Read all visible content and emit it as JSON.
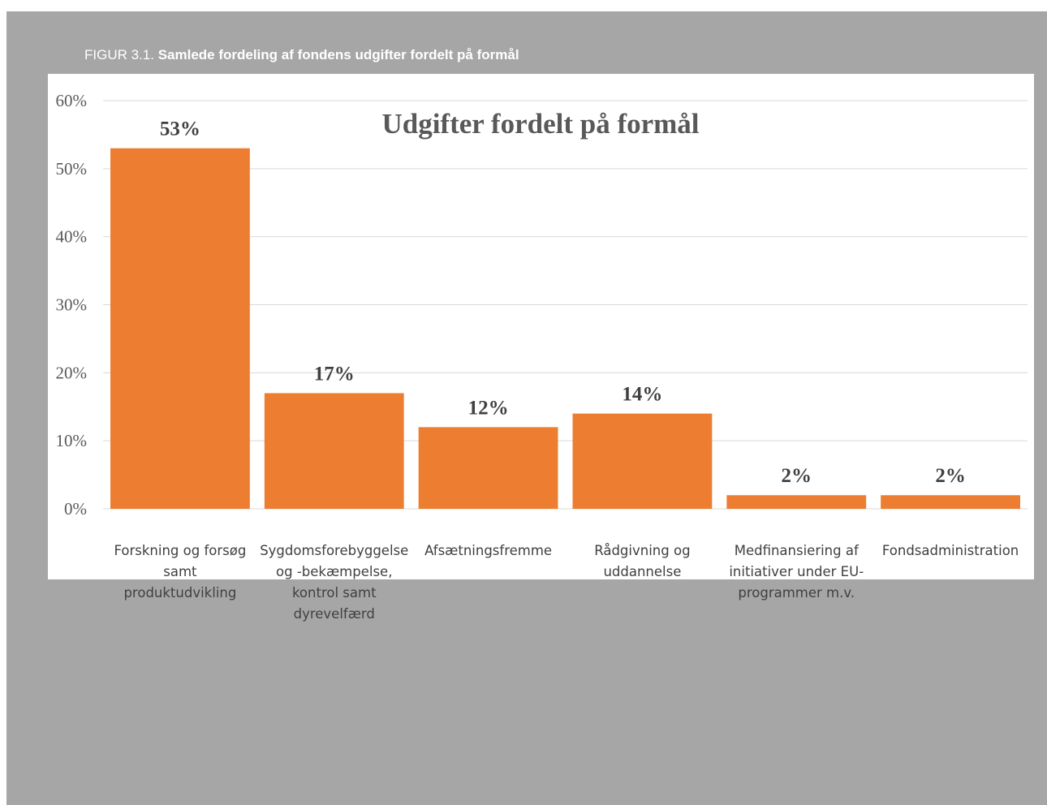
{
  "caption": {
    "prefix": "FIGUR 3.1. ",
    "title": "Samlede fordeling af fondens udgifter fordelt på formål"
  },
  "colors": {
    "frame": "#a6a6a6",
    "bar": "#ed7d31",
    "gridline": "#d9d9d9"
  },
  "chart_data": {
    "type": "bar",
    "title": "Udgifter fordelt på formål",
    "categories": [
      [
        "Forskning og forsøg",
        "samt",
        "produktudvikling"
      ],
      [
        "Sygdomsforebyggelse",
        "og -bekæmpelse,",
        "kontrol samt",
        "dyrevelfærd"
      ],
      [
        "Afsætningsfremme"
      ],
      [
        "Rådgivning og",
        "uddannelse"
      ],
      [
        "Medfinansiering af",
        "initiativer under EU-",
        "programmer m.v."
      ],
      [
        "Fondsadministration"
      ]
    ],
    "values": [
      53,
      17,
      12,
      14,
      2,
      2
    ],
    "data_labels": [
      "53%",
      "17%",
      "12%",
      "14%",
      "2%",
      "2%"
    ],
    "yticks": [
      "0%",
      "10%",
      "20%",
      "30%",
      "40%",
      "50%",
      "60%"
    ],
    "ylim": [
      0,
      60
    ],
    "grid": true,
    "legend": false
  }
}
